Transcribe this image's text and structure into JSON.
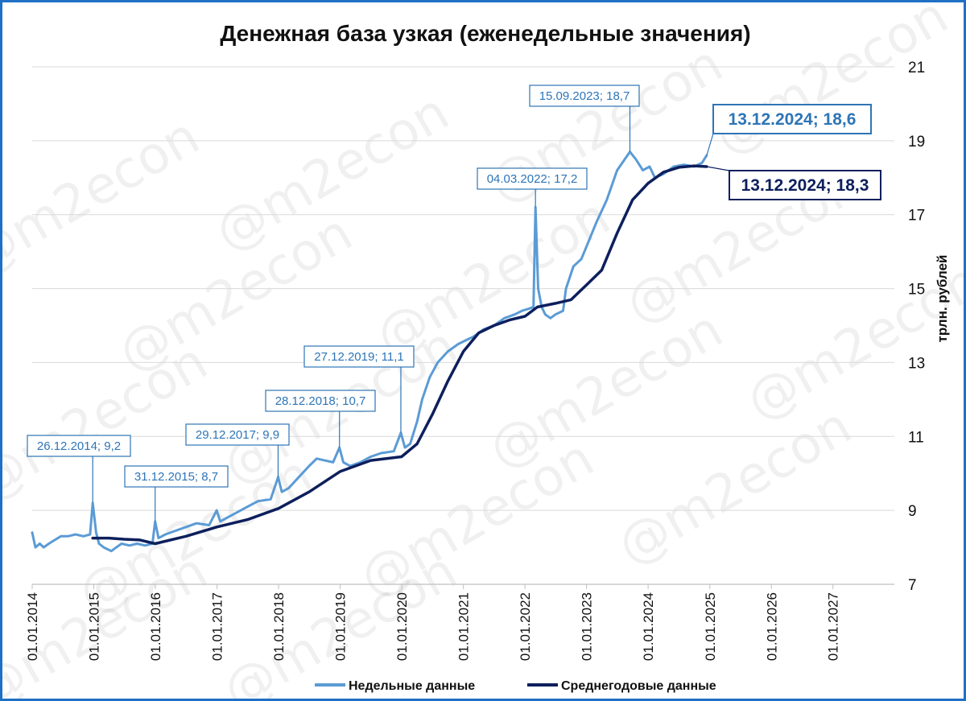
{
  "chart_data": {
    "type": "line",
    "title": "Денежная база узкая (еженедельные значения)",
    "ylabel": "трлн. рублей",
    "ylim": [
      7,
      21
    ],
    "y_ticks": [
      7,
      9,
      11,
      13,
      15,
      17,
      19,
      21
    ],
    "x_range": [
      "2014-01-01",
      "2027-12-31"
    ],
    "x_ticks": [
      "2014-01-01",
      "2015-01-01",
      "2016-01-01",
      "2017-01-01",
      "2018-01-01",
      "2019-01-01",
      "2020-01-01",
      "2021-01-01",
      "2022-01-01",
      "2023-01-01",
      "2024-01-01",
      "2025-01-01",
      "2026-01-01",
      "2027-01-01"
    ],
    "x_tick_labels": [
      "01.01.2014",
      "01.01.2015",
      "01.01.2016",
      "01.01.2017",
      "01.01.2018",
      "01.01.2019",
      "01.01.2020",
      "01.01.2021",
      "01.01.2022",
      "01.01.2023",
      "01.01.2024",
      "01.01.2025",
      "01.01.2026",
      "01.01.2027"
    ],
    "grid": true,
    "legend_position": "bottom-center",
    "series": [
      {
        "name": "Недельные данные",
        "color": "#5b9bd5",
        "points": [
          [
            "2014-01-01",
            8.4
          ],
          [
            "2014-01-20",
            8.0
          ],
          [
            "2014-02-15",
            8.1
          ],
          [
            "2014-03-10",
            8.0
          ],
          [
            "2014-04-10",
            8.1
          ],
          [
            "2014-05-15",
            8.2
          ],
          [
            "2014-06-20",
            8.3
          ],
          [
            "2014-08-01",
            8.3
          ],
          [
            "2014-09-15",
            8.35
          ],
          [
            "2014-11-01",
            8.3
          ],
          [
            "2014-12-10",
            8.35
          ],
          [
            "2014-12-26",
            9.2
          ],
          [
            "2015-01-15",
            8.4
          ],
          [
            "2015-02-01",
            8.1
          ],
          [
            "2015-03-01",
            8.0
          ],
          [
            "2015-04-15",
            7.9
          ],
          [
            "2015-05-15",
            8.0
          ],
          [
            "2015-06-15",
            8.1
          ],
          [
            "2015-08-01",
            8.05
          ],
          [
            "2015-09-15",
            8.1
          ],
          [
            "2015-11-01",
            8.05
          ],
          [
            "2015-12-15",
            8.1
          ],
          [
            "2015-12-31",
            8.7
          ],
          [
            "2016-01-20",
            8.25
          ],
          [
            "2016-03-01",
            8.35
          ],
          [
            "2016-05-01",
            8.45
          ],
          [
            "2016-07-01",
            8.55
          ],
          [
            "2016-09-01",
            8.65
          ],
          [
            "2016-11-15",
            8.6
          ],
          [
            "2016-12-30",
            9.0
          ],
          [
            "2017-01-20",
            8.7
          ],
          [
            "2017-03-01",
            8.8
          ],
          [
            "2017-05-01",
            8.95
          ],
          [
            "2017-07-01",
            9.1
          ],
          [
            "2017-09-01",
            9.25
          ],
          [
            "2017-11-15",
            9.3
          ],
          [
            "2017-12-29",
            9.9
          ],
          [
            "2018-01-20",
            9.5
          ],
          [
            "2018-03-01",
            9.6
          ],
          [
            "2018-05-01",
            9.9
          ],
          [
            "2018-07-01",
            10.2
          ],
          [
            "2018-08-15",
            10.4
          ],
          [
            "2018-10-01",
            10.35
          ],
          [
            "2018-11-20",
            10.3
          ],
          [
            "2018-12-28",
            10.7
          ],
          [
            "2019-01-20",
            10.3
          ],
          [
            "2019-03-01",
            10.2
          ],
          [
            "2019-05-01",
            10.3
          ],
          [
            "2019-07-01",
            10.45
          ],
          [
            "2019-09-01",
            10.55
          ],
          [
            "2019-11-15",
            10.6
          ],
          [
            "2019-12-27",
            11.1
          ],
          [
            "2020-01-20",
            10.7
          ],
          [
            "2020-02-20",
            10.8
          ],
          [
            "2020-04-01",
            11.4
          ],
          [
            "2020-05-01",
            12.0
          ],
          [
            "2020-06-15",
            12.6
          ],
          [
            "2020-08-01",
            13.0
          ],
          [
            "2020-10-01",
            13.3
          ],
          [
            "2020-12-01",
            13.5
          ],
          [
            "2021-01-15",
            13.6
          ],
          [
            "2021-03-01",
            13.7
          ],
          [
            "2021-05-01",
            13.9
          ],
          [
            "2021-07-01",
            14.0
          ],
          [
            "2021-09-01",
            14.2
          ],
          [
            "2021-11-01",
            14.3
          ],
          [
            "2021-12-15",
            14.4
          ],
          [
            "2022-01-20",
            14.45
          ],
          [
            "2022-02-20",
            14.5
          ],
          [
            "2022-03-04",
            17.2
          ],
          [
            "2022-03-20",
            15.0
          ],
          [
            "2022-04-10",
            14.5
          ],
          [
            "2022-05-01",
            14.3
          ],
          [
            "2022-06-01",
            14.2
          ],
          [
            "2022-07-01",
            14.3
          ],
          [
            "2022-08-15",
            14.4
          ],
          [
            "2022-09-01",
            15.0
          ],
          [
            "2022-10-15",
            15.6
          ],
          [
            "2022-12-01",
            15.8
          ],
          [
            "2023-01-15",
            16.3
          ],
          [
            "2023-03-01",
            16.8
          ],
          [
            "2023-05-01",
            17.4
          ],
          [
            "2023-07-01",
            18.2
          ],
          [
            "2023-09-15",
            18.7
          ],
          [
            "2023-10-20",
            18.5
          ],
          [
            "2023-12-01",
            18.2
          ],
          [
            "2024-01-10",
            18.3
          ],
          [
            "2024-02-10",
            18.0
          ],
          [
            "2024-04-01",
            18.1
          ],
          [
            "2024-06-01",
            18.3
          ],
          [
            "2024-08-01",
            18.35
          ],
          [
            "2024-10-01",
            18.3
          ],
          [
            "2024-11-15",
            18.4
          ],
          [
            "2024-12-13",
            18.6
          ]
        ]
      },
      {
        "name": "Среднегодовые данные",
        "color": "#0d1f5c",
        "points": [
          [
            "2014-12-26",
            8.25
          ],
          [
            "2015-04-01",
            8.25
          ],
          [
            "2015-07-01",
            8.22
          ],
          [
            "2015-10-01",
            8.2
          ],
          [
            "2015-12-31",
            8.1
          ],
          [
            "2016-07-01",
            8.3
          ],
          [
            "2016-12-31",
            8.55
          ],
          [
            "2017-07-01",
            8.75
          ],
          [
            "2017-12-31",
            9.05
          ],
          [
            "2018-07-01",
            9.5
          ],
          [
            "2018-12-31",
            10.05
          ],
          [
            "2019-07-01",
            10.35
          ],
          [
            "2019-12-31",
            10.45
          ],
          [
            "2020-04-01",
            10.8
          ],
          [
            "2020-07-01",
            11.6
          ],
          [
            "2020-10-01",
            12.5
          ],
          [
            "2021-01-01",
            13.3
          ],
          [
            "2021-04-01",
            13.8
          ],
          [
            "2021-07-01",
            14.0
          ],
          [
            "2021-10-01",
            14.15
          ],
          [
            "2022-01-01",
            14.25
          ],
          [
            "2022-03-15",
            14.5
          ],
          [
            "2022-07-01",
            14.6
          ],
          [
            "2022-10-01",
            14.7
          ],
          [
            "2023-01-01",
            15.1
          ],
          [
            "2023-04-01",
            15.5
          ],
          [
            "2023-07-01",
            16.5
          ],
          [
            "2023-10-01",
            17.4
          ],
          [
            "2024-01-01",
            17.85
          ],
          [
            "2024-04-01",
            18.15
          ],
          [
            "2024-07-01",
            18.28
          ],
          [
            "2024-10-01",
            18.32
          ],
          [
            "2024-12-13",
            18.3
          ]
        ]
      }
    ],
    "annotations": [
      {
        "date": "2014-12-26",
        "value": 9.2,
        "label": "26.12.2014;  9,2",
        "series": 0,
        "style": "small"
      },
      {
        "date": "2015-12-31",
        "value": 8.7,
        "label": "31.12.2015;  8,7",
        "series": 0,
        "style": "small"
      },
      {
        "date": "2017-12-29",
        "value": 9.9,
        "label": "29.12.2017;  9,9",
        "series": 0,
        "style": "small"
      },
      {
        "date": "2018-12-28",
        "value": 10.7,
        "label": "28.12.2018;  10,7",
        "series": 0,
        "style": "small"
      },
      {
        "date": "2019-12-27",
        "value": 11.1,
        "label": "27.12.2019;  11,1",
        "series": 0,
        "style": "small"
      },
      {
        "date": "2022-03-04",
        "value": 17.2,
        "label": "04.03.2022;  17,2",
        "series": 0,
        "style": "small"
      },
      {
        "date": "2023-09-15",
        "value": 18.7,
        "label": "15.09.2023;  18,7",
        "series": 0,
        "style": "small"
      },
      {
        "date": "2024-12-13",
        "value": 18.6,
        "label": "13.12.2024;  18,6",
        "series": 0,
        "style": "big"
      },
      {
        "date": "2024-12-13",
        "value": 18.3,
        "label": "13.12.2024;  18,3",
        "series": 1,
        "style": "big"
      }
    ]
  },
  "watermark": "@m2econ"
}
